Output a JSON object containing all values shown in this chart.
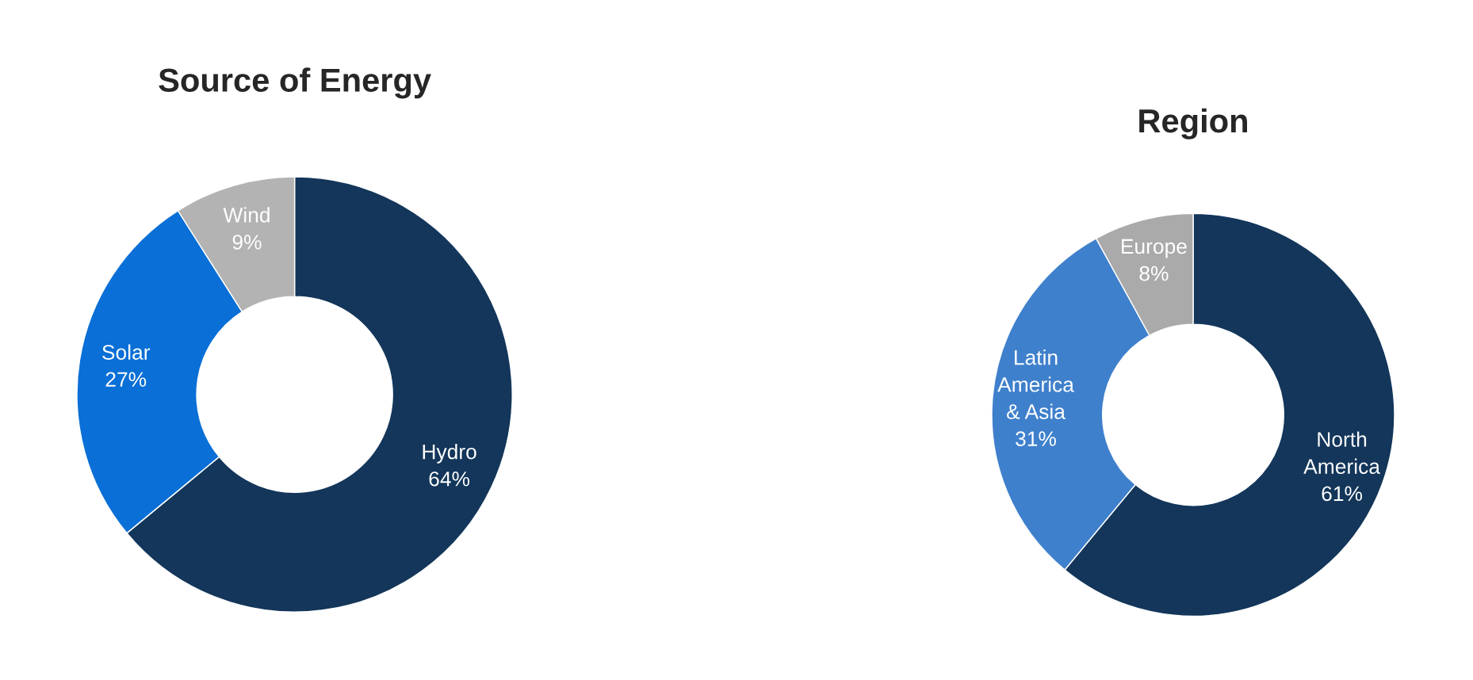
{
  "chart_data": [
    {
      "type": "donut",
      "title": "Source of Energy",
      "categories": [
        "Hydro",
        "Solar",
        "Wind"
      ],
      "values": [
        64,
        27,
        9
      ],
      "value_labels": [
        "64%",
        "27%",
        "9%"
      ],
      "colors": [
        "#13365a",
        "#0a6fd6",
        "#b3b3b3"
      ],
      "legend": false
    },
    {
      "type": "donut",
      "title": "Region",
      "categories": [
        "North\nAmerica",
        "Latin\nAmerica\n& Asia",
        "Europe"
      ],
      "values": [
        61,
        31,
        8
      ],
      "value_labels": [
        "61%",
        "31%",
        "8%"
      ],
      "colors": [
        "#13365a",
        "#3f80cc",
        "#aaaaaa"
      ],
      "legend": false
    }
  ]
}
